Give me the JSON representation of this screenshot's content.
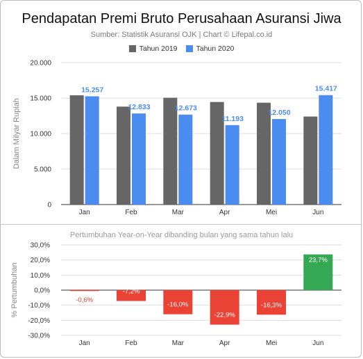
{
  "title": "Pendapatan Premi Bruto Perusahaan Asuransi Jiwa",
  "subtitle": "Sumber: Statistik Asuransi OJK | Chart © Lifepal.co.id",
  "bottom_subtitle": "Pertumbuhan Year-on-Year dibanding bulan yang sama tahun lalu",
  "colors": {
    "y2019": "#666666",
    "y2020": "#4a8cf0",
    "positive": "#34a853",
    "negative": "#ea4335",
    "label2020": "#4a8cf0"
  },
  "chart_data": [
    {
      "type": "bar",
      "categories": [
        "Jan",
        "Feb",
        "Mar",
        "Apr",
        "Mei",
        "Jun"
      ],
      "series": [
        {
          "name": "Tahun 2019",
          "values": [
            15400,
            13800,
            15050,
            14450,
            14350,
            12400
          ]
        },
        {
          "name": "Tahun 2020",
          "values": [
            15257,
            12833,
            12673,
            11193,
            12050,
            15417
          ],
          "labels": [
            "15.257",
            "12.833",
            "12.673",
            "11.193",
            "12.050",
            "15.417"
          ]
        }
      ],
      "ylabel": "Dalam Milyar Rupiah",
      "ylim": [
        0,
        20000
      ],
      "yticks": [
        0,
        5000,
        10000,
        15000,
        20000
      ],
      "ytick_labels": [
        "0",
        "5.000",
        "10.000",
        "15.000",
        "20.000"
      ],
      "legend_position": "top",
      "grid": true
    },
    {
      "type": "bar",
      "categories": [
        "Jan",
        "Feb",
        "Mar",
        "Apr",
        "Mei",
        "Jun"
      ],
      "values": [
        -0.6,
        -7.2,
        -16.0,
        -22.9,
        -16.3,
        23.7
      ],
      "labels": [
        "-0,6%",
        "-7,2%",
        "-16,0%",
        "-22,9%",
        "-16,3%",
        "23,7%"
      ],
      "title": "Pertumbuhan Year-on-Year dibanding bulan yang sama tahun lalu",
      "ylabel": "% Pertumbuhan",
      "ylim": [
        -30,
        30
      ],
      "yticks": [
        -30,
        -20,
        -10,
        0,
        10,
        20,
        30
      ],
      "ytick_labels": [
        "-30,0%",
        "-20,0%",
        "-10,0%",
        "0,0%",
        "10,0%",
        "20,0%",
        "30,0%"
      ],
      "grid": true
    }
  ]
}
